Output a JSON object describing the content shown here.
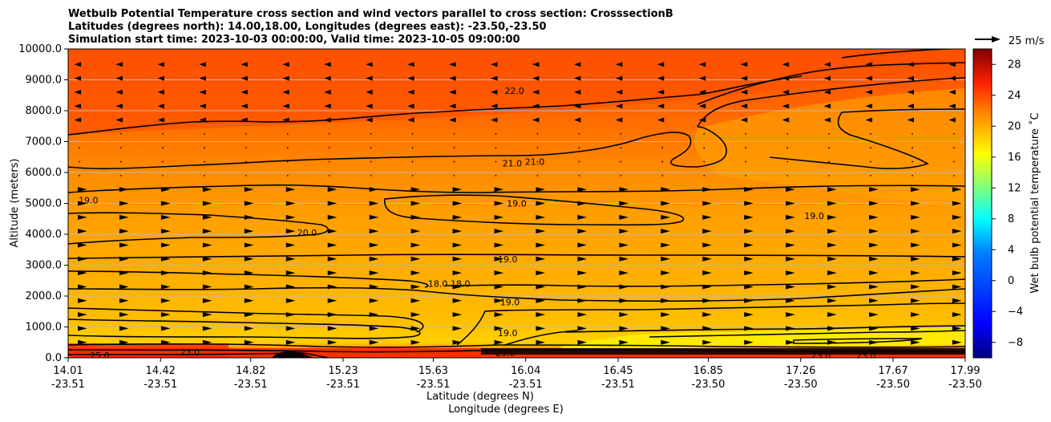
{
  "chart_data": {
    "type": "contour",
    "title_lines": [
      "Wetbulb Potential Temperature cross section and wind vectors parallel to cross section: CrosssectionB",
      "Latitudes (degrees north): 14.00,18.00, Longitudes (degrees east): -23.50,-23.50",
      "Simulation start time: 2023-10-03 00:00:00, Valid time: 2023-10-05 09:00:00"
    ],
    "xlabel_lat": "Latitude (degrees N)",
    "xlabel_lon": "Longitude (degrees E)",
    "ylabel": "Altitude (meters)",
    "ylim": [
      0,
      10000
    ],
    "yticks": [
      "0.0",
      "1000.0",
      "2000.0",
      "3000.0",
      "4000.0",
      "5000.0",
      "6000.0",
      "7000.0",
      "8000.0",
      "9000.0",
      "10000.0"
    ],
    "xlim": [
      14.01,
      17.99
    ],
    "xticks": [
      {
        "lat": "14.01",
        "lon": "-23.51"
      },
      {
        "lat": "14.42",
        "lon": "-23.51"
      },
      {
        "lat": "14.82",
        "lon": "-23.51"
      },
      {
        "lat": "15.23",
        "lon": "-23.51"
      },
      {
        "lat": "15.63",
        "lon": "-23.51"
      },
      {
        "lat": "16.04",
        "lon": "-23.51"
      },
      {
        "lat": "16.45",
        "lon": "-23.51"
      },
      {
        "lat": "16.85",
        "lon": "-23.50"
      },
      {
        "lat": "17.26",
        "lon": "-23.50"
      },
      {
        "lat": "17.67",
        "lon": "-23.50"
      },
      {
        "lat": "17.99",
        "lon": "-23.50"
      }
    ],
    "grid": true,
    "colorbar": {
      "label": "Wet bulb potential temperature ˚C",
      "range": [
        -10,
        30
      ],
      "ticks": [
        "28",
        "24",
        "20",
        "16",
        "12",
        "8",
        "4",
        "0",
        "−4",
        "−8"
      ],
      "colormap": "jet"
    },
    "quiver_key": {
      "label": "25 m/s",
      "speed": 25
    },
    "contour_labels": [
      {
        "text": "22.0",
        "lat": 15.99,
        "alt": 8650
      },
      {
        "text": "21.0",
        "lat": 15.98,
        "alt": 6300
      },
      {
        "text": "21.0",
        "lat": 16.08,
        "alt": 6350
      },
      {
        "text": "19.0",
        "lat": 14.1,
        "alt": 5100
      },
      {
        "text": "19.0",
        "lat": 16.0,
        "alt": 5000
      },
      {
        "text": "19.0",
        "lat": 17.32,
        "alt": 4600
      },
      {
        "text": "20.0",
        "lat": 15.07,
        "alt": 4050
      },
      {
        "text": "19.0",
        "lat": 15.96,
        "alt": 3200
      },
      {
        "text": "18.0",
        "lat": 15.65,
        "alt": 2400
      },
      {
        "text": "18.0",
        "lat": 15.75,
        "alt": 2400
      },
      {
        "text": "19.0",
        "lat": 15.97,
        "alt": 1800
      },
      {
        "text": "19.0",
        "lat": 15.96,
        "alt": 800
      },
      {
        "text": "25.0",
        "lat": 14.15,
        "alt": 80
      },
      {
        "text": "23.0",
        "lat": 14.55,
        "alt": 180
      },
      {
        "text": "23.0",
        "lat": 15.95,
        "alt": 150
      },
      {
        "text": "23.0",
        "lat": 17.35,
        "alt": 80
      },
      {
        "text": "23.0",
        "lat": 17.55,
        "alt": 80
      }
    ],
    "wind_vectors": {
      "upper_layer": {
        "alt_range": [
          7500,
          10000
        ],
        "direction": "southward",
        "speed_mps": 4
      },
      "mid_layer": {
        "alt_range": [
          5500,
          7500
        ],
        "direction": "weak",
        "speed_mps": 1
      },
      "lower_layer": {
        "alt_range": [
          500,
          5500
        ],
        "direction": "northward",
        "speed_mps": 6
      }
    }
  }
}
